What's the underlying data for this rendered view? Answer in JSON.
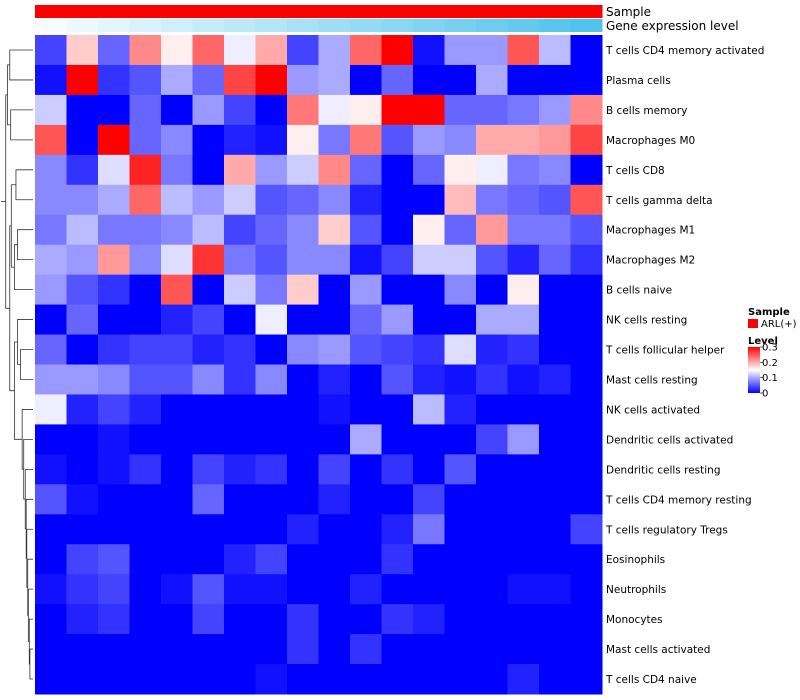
{
  "chart_data": {
    "type": "heatmap",
    "annotations": [
      {
        "name": "Sample",
        "values": [
          "ARL(+)",
          "ARL(+)",
          "ARL(+)",
          "ARL(+)",
          "ARL(+)",
          "ARL(+)",
          "ARL(+)",
          "ARL(+)",
          "ARL(+)",
          "ARL(+)",
          "ARL(+)",
          "ARL(+)",
          "ARL(+)",
          "ARL(+)",
          "ARL(+)",
          "ARL(+)",
          "ARL(+)",
          "ARL(+)"
        ],
        "color": "#ff0000"
      },
      {
        "name": "Gene expression level",
        "values": [
          0,
          1,
          2,
          3,
          4,
          5,
          6,
          7,
          8,
          9,
          10,
          11,
          12,
          13,
          14,
          15,
          16,
          17
        ],
        "color_low": "#f7fcff",
        "color_high": "#4fc3ec"
      }
    ],
    "rows": [
      "T cells CD4 memory activated",
      "Plasma cells",
      "B cells memory",
      "Macrophages M0",
      "T cells CD8",
      "T cells gamma delta",
      "Macrophages M1",
      "Macrophages M2",
      "B cells naive",
      "NK cells resting",
      "T cells follicular helper",
      "Mast cells resting",
      "NK cells activated",
      "Dendritic cells activated",
      "Dendritic cells resting",
      "T cells CD4 memory resting",
      "T cells regulatory  Tregs",
      "Eosinophils",
      "Neutrophils",
      "Monocytes",
      "Mast cells activated",
      "T cells CD4 naive"
    ],
    "values": [
      [
        0.04,
        0.18,
        0.06,
        0.22,
        0.16,
        0.24,
        0.14,
        0.2,
        0.04,
        0.1,
        0.24,
        0.3,
        0.01,
        0.09,
        0.09,
        0.25,
        0.11,
        0.0
      ],
      [
        0.01,
        0.3,
        0.03,
        0.05,
        0.1,
        0.06,
        0.26,
        0.3,
        0.09,
        0.1,
        0.0,
        0.06,
        0.0,
        0.0,
        0.1,
        0.0,
        0.0,
        0.0
      ],
      [
        0.12,
        0.0,
        0.0,
        0.06,
        0.0,
        0.09,
        0.04,
        0.0,
        0.23,
        0.14,
        0.16,
        0.3,
        0.3,
        0.06,
        0.06,
        0.07,
        0.09,
        0.22
      ],
      [
        0.25,
        0.0,
        0.3,
        0.06,
        0.08,
        0.0,
        0.02,
        0.01,
        0.16,
        0.07,
        0.23,
        0.05,
        0.09,
        0.08,
        0.2,
        0.2,
        0.21,
        0.26
      ],
      [
        0.08,
        0.03,
        0.13,
        0.28,
        0.07,
        0.0,
        0.2,
        0.09,
        0.12,
        0.22,
        0.06,
        0.0,
        0.06,
        0.16,
        0.14,
        0.07,
        0.08,
        0.0
      ],
      [
        0.08,
        0.08,
        0.1,
        0.24,
        0.11,
        0.09,
        0.12,
        0.05,
        0.06,
        0.08,
        0.02,
        0.0,
        0.0,
        0.19,
        0.07,
        0.06,
        0.05,
        0.25
      ],
      [
        0.07,
        0.11,
        0.07,
        0.07,
        0.08,
        0.11,
        0.04,
        0.06,
        0.08,
        0.18,
        0.05,
        0.0,
        0.16,
        0.06,
        0.21,
        0.07,
        0.07,
        0.05
      ],
      [
        0.1,
        0.09,
        0.21,
        0.08,
        0.13,
        0.27,
        0.07,
        0.05,
        0.08,
        0.08,
        0.01,
        0.04,
        0.12,
        0.12,
        0.05,
        0.02,
        0.06,
        0.03
      ],
      [
        0.09,
        0.05,
        0.03,
        0.0,
        0.25,
        0.0,
        0.12,
        0.07,
        0.18,
        0.0,
        0.09,
        0.0,
        0.0,
        0.08,
        0.0,
        0.16,
        0.0,
        0.0
      ],
      [
        0.0,
        0.06,
        0.0,
        0.0,
        0.02,
        0.04,
        0.0,
        0.14,
        0.0,
        0.0,
        0.06,
        0.09,
        0.0,
        0.0,
        0.1,
        0.1,
        0.0,
        0.0
      ],
      [
        0.06,
        0.0,
        0.03,
        0.04,
        0.04,
        0.02,
        0.03,
        0.0,
        0.08,
        0.09,
        0.05,
        0.04,
        0.03,
        0.13,
        0.02,
        0.03,
        0.0,
        0.0
      ],
      [
        0.09,
        0.09,
        0.08,
        0.05,
        0.05,
        0.08,
        0.03,
        0.08,
        0.0,
        0.02,
        0.0,
        0.05,
        0.02,
        0.01,
        0.03,
        0.01,
        0.02,
        0.0
      ],
      [
        0.14,
        0.02,
        0.04,
        0.02,
        0.0,
        0.0,
        0.0,
        0.0,
        0.0,
        0.01,
        0.0,
        0.0,
        0.11,
        0.02,
        0.0,
        0.0,
        0.0,
        0.0
      ],
      [
        0.0,
        0.0,
        0.01,
        0.0,
        0.0,
        0.0,
        0.0,
        0.0,
        0.0,
        0.0,
        0.1,
        0.0,
        0.0,
        0.0,
        0.04,
        0.09,
        0.0,
        0.0
      ],
      [
        0.01,
        0.0,
        0.01,
        0.03,
        0.0,
        0.04,
        0.02,
        0.03,
        0.0,
        0.04,
        0.0,
        0.03,
        0.0,
        0.05,
        0.0,
        0.0,
        0.0,
        0.0
      ],
      [
        0.05,
        0.01,
        0.0,
        0.0,
        0.0,
        0.06,
        0.0,
        0.0,
        0.0,
        0.02,
        0.0,
        0.0,
        0.04,
        0.0,
        0.0,
        0.0,
        0.0,
        0.0
      ],
      [
        0.0,
        0.0,
        0.0,
        0.0,
        0.0,
        0.0,
        0.0,
        0.0,
        0.02,
        0.0,
        0.0,
        0.02,
        0.07,
        0.0,
        0.0,
        0.0,
        0.0,
        0.04
      ],
      [
        0.0,
        0.04,
        0.05,
        0.0,
        0.0,
        0.0,
        0.02,
        0.04,
        0.0,
        0.0,
        0.0,
        0.03,
        0.0,
        0.0,
        0.0,
        0.0,
        0.0,
        0.0
      ],
      [
        0.01,
        0.03,
        0.04,
        0.0,
        0.01,
        0.05,
        0.01,
        0.01,
        0.0,
        0.0,
        0.02,
        0.0,
        0.0,
        0.0,
        0.0,
        0.01,
        0.01,
        0.0
      ],
      [
        0.0,
        0.02,
        0.03,
        0.0,
        0.0,
        0.04,
        0.0,
        0.0,
        0.03,
        0.0,
        0.0,
        0.03,
        0.02,
        0.0,
        0.0,
        0.0,
        0.0,
        0.0
      ],
      [
        0.0,
        0.0,
        0.0,
        0.0,
        0.0,
        0.0,
        0.0,
        0.0,
        0.03,
        0.0,
        0.03,
        0.0,
        0.0,
        0.0,
        0.0,
        0.0,
        0.0,
        0.0
      ],
      [
        0.0,
        0.0,
        0.0,
        0.0,
        0.0,
        0.0,
        0.0,
        0.01,
        0.0,
        0.0,
        0.0,
        0.0,
        0.0,
        0.0,
        0.0,
        0.02,
        0.0,
        0.0
      ]
    ],
    "color_scale": {
      "low": "#0000ff",
      "mid": "#ffffff",
      "high": "#ff0000",
      "min": 0,
      "mid_value": 0.15,
      "max": 0.3
    },
    "legend": {
      "sample_title": "Sample",
      "sample_entry": "ARL(+)",
      "level_title": "Level",
      "level_ticks": [
        "0.3",
        "0.2",
        "0.1",
        "0"
      ],
      "level_tick_values": [
        0.3,
        0.2,
        0.1,
        0
      ],
      "placement": "right"
    },
    "row_dendrogram": true
  }
}
